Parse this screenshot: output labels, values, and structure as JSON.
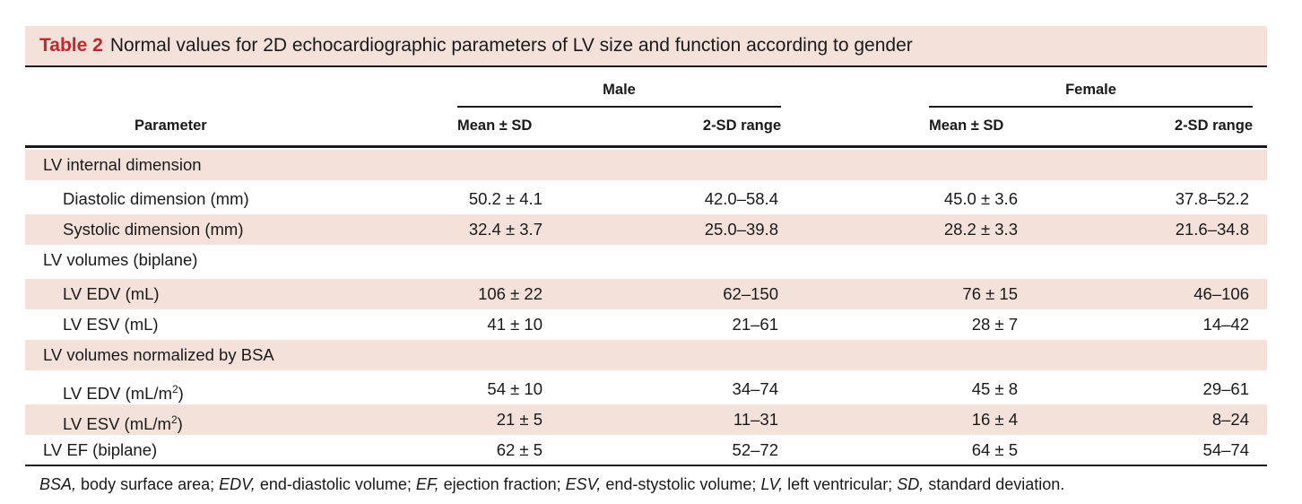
{
  "table": {
    "label": "Table 2",
    "title": "Normal values for 2D echocardiographic parameters of LV size and function according to gender",
    "header": {
      "parameter": "Parameter",
      "male": "Male",
      "female": "Female",
      "mean_sd": "Mean ± SD",
      "range": "2-SD range"
    },
    "rows": [
      {
        "label": "LV internal dimension",
        "indent": false,
        "shaded": true,
        "values": [
          "",
          "",
          "",
          ""
        ]
      },
      {
        "label": "Diastolic dimension (mm)",
        "indent": true,
        "shaded": false,
        "values": [
          "50.2 ± 4.1",
          "42.0–58.4",
          "45.0 ± 3.6",
          "37.8–52.2"
        ]
      },
      {
        "label": "Systolic dimension (mm)",
        "indent": true,
        "shaded": true,
        "values": [
          "32.4 ± 3.7",
          "25.0–39.8",
          "28.2 ± 3.3",
          "21.6–34.8"
        ]
      },
      {
        "label": "LV volumes (biplane)",
        "indent": false,
        "shaded": false,
        "values": [
          "",
          "",
          "",
          ""
        ]
      },
      {
        "label": "LV EDV (mL)",
        "indent": true,
        "shaded": true,
        "values": [
          "106 ± 22",
          "62–150",
          "76 ± 15",
          "46–106"
        ]
      },
      {
        "label": "LV ESV (mL)",
        "indent": true,
        "shaded": false,
        "values": [
          "41 ± 10",
          "21–61",
          "28 ± 7",
          "14–42"
        ]
      },
      {
        "label": "LV volumes normalized by BSA",
        "indent": false,
        "shaded": true,
        "values": [
          "",
          "",
          "",
          ""
        ]
      },
      {
        "label": "LV EDV (mL/m",
        "sup": "2",
        "label_end": ")",
        "indent": true,
        "shaded": false,
        "values": [
          "54 ± 10",
          "34–74",
          "45 ± 8",
          "29–61"
        ]
      },
      {
        "label": "LV ESV (mL/m",
        "sup": "2",
        "label_end": ")",
        "indent": true,
        "shaded": true,
        "values": [
          "21 ± 5",
          "11–31",
          "16 ± 4",
          "8–24"
        ]
      },
      {
        "label": "LV EF (biplane)",
        "indent": false,
        "shaded": false,
        "values": [
          "62 ± 5",
          "52–72",
          "64 ± 5",
          "54–74"
        ]
      }
    ],
    "footnote": [
      {
        "abbr": "BSA,",
        "def": " body surface area; "
      },
      {
        "abbr": "EDV,",
        "def": " end-diastolic volume; "
      },
      {
        "abbr": "EF,",
        "def": " ejection fraction; "
      },
      {
        "abbr": "ESV,",
        "def": " end-stystolic volume; "
      },
      {
        "abbr": "LV,",
        "def": " left ventricular; "
      },
      {
        "abbr": "SD,",
        "def": " standard deviation."
      }
    ]
  },
  "colors": {
    "caption_bg": "#f4e1da",
    "label_red": "#c0282d",
    "row_shade": "#f4e1da",
    "rule": "#1a1a1a"
  }
}
